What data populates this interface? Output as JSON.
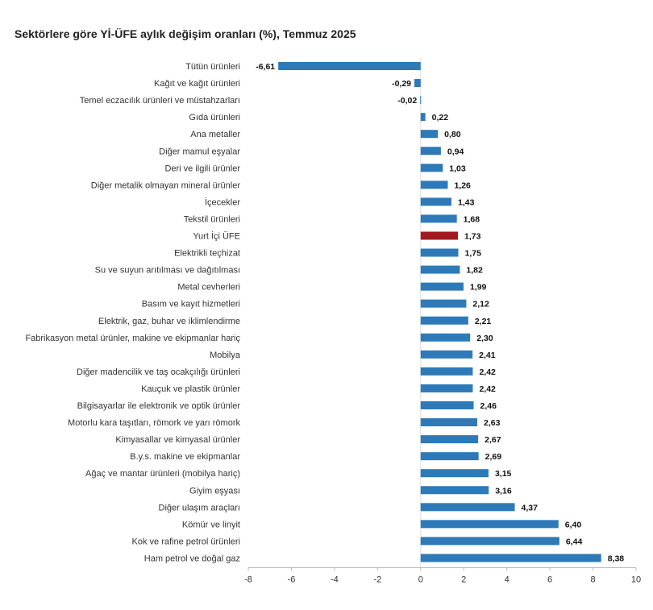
{
  "chart_data": {
    "type": "bar",
    "orientation": "horizontal",
    "title": "Sektörlere göre Yİ-ÜFE aylık değişim oranları (%), Temmuz 2025",
    "xlabel": "",
    "ylabel": "",
    "xlim": [
      -8,
      10
    ],
    "xticks": [
      -8,
      -6,
      -4,
      -2,
      0,
      2,
      4,
      6,
      8,
      10
    ],
    "categories": [
      "Tütün ürünleri",
      "Kağıt ve kağıt ürünleri",
      "Temel eczacılık ürünleri ve müstahzarları",
      "Gıda ürünleri",
      "Ana metaller",
      "Diğer mamul eşyalar",
      "Deri ve ilgili ürünler",
      "Diğer metalik olmayan mineral ürünler",
      "İçecekler",
      "Tekstil ürünleri",
      "Yurt İçi ÜFE",
      "Elektrikli teçhizat",
      "Su ve suyun arıtılması ve dağıtılması",
      "Metal cevherleri",
      "Basım ve kayıt hizmetleri",
      "Elektrik, gaz, buhar ve iklimlendirme",
      "Fabrikasyon metal ürünler, makine ve ekipmanlar hariç",
      "Mobilya",
      "Diğer madencilik ve taş ocakçılığı ürünleri",
      "Kauçuk ve plastik ürünler",
      "Bilgisayarlar ile elektronik ve optik ürünler",
      "Motorlu kara taşıtları, römork ve yarı römork",
      "Kimyasallar ve kimyasal ürünler",
      "B.y.s. makine ve ekipmanlar",
      "Ağaç ve mantar ürünleri (mobilya hariç)",
      "Giyim eşyası",
      "Diğer ulaşım araçları",
      "Kömür ve linyit",
      "Kok ve rafine petrol ürünleri",
      "Ham petrol ve doğal gaz"
    ],
    "values": [
      -6.61,
      -0.29,
      -0.02,
      0.22,
      0.8,
      0.94,
      1.03,
      1.26,
      1.43,
      1.68,
      1.73,
      1.75,
      1.82,
      1.99,
      2.12,
      2.21,
      2.3,
      2.41,
      2.42,
      2.42,
      2.46,
      2.63,
      2.67,
      2.69,
      3.15,
      3.16,
      4.37,
      6.4,
      6.44,
      8.38
    ],
    "value_labels": [
      "-6,61",
      "-0,29",
      "-0,02",
      "0,22",
      "0,80",
      "0,94",
      "1,03",
      "1,26",
      "1,43",
      "1,68",
      "1,73",
      "1,75",
      "1,82",
      "1,99",
      "2,12",
      "2,21",
      "2,30",
      "2,41",
      "2,42",
      "2,42",
      "2,46",
      "2,63",
      "2,67",
      "2,69",
      "3,15",
      "3,16",
      "4,37",
      "6,40",
      "6,44",
      "8,38"
    ],
    "highlight_category": "Yurt İçi ÜFE",
    "colors": {
      "bar": "#2e7ab8",
      "highlight": "#a31b1f",
      "axis": "#bbbbbb"
    },
    "grid": false,
    "legend": "none"
  }
}
